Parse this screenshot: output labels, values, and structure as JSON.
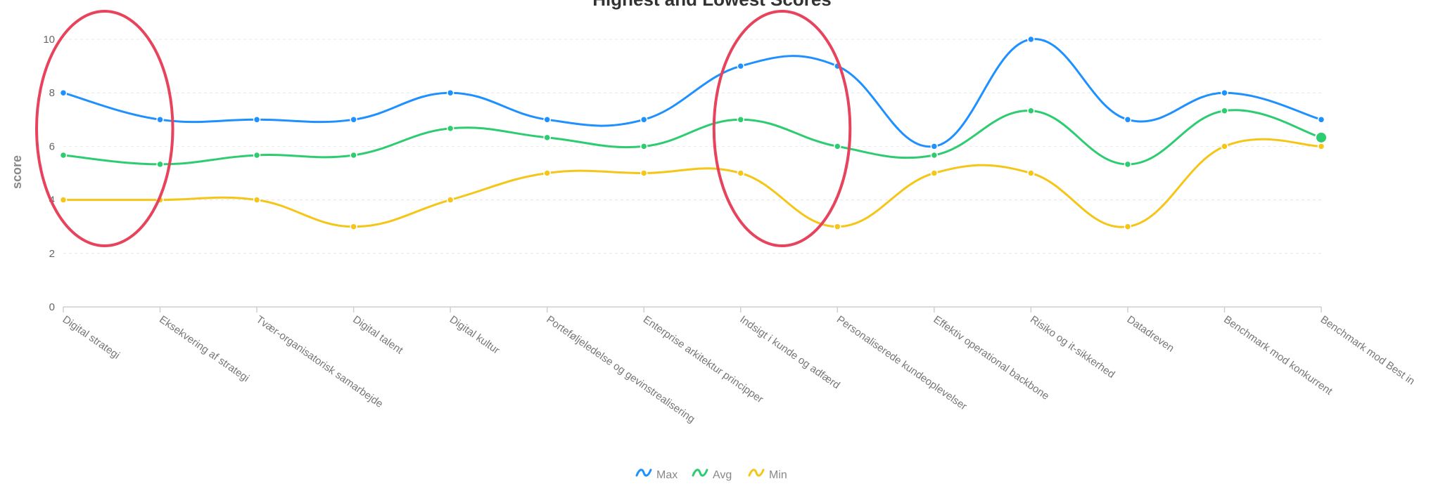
{
  "chart_data": {
    "type": "line",
    "title": "Highest and Lowest Scores",
    "xlabel": "",
    "ylabel": "score",
    "ylim": [
      0,
      10
    ],
    "yticks": [
      0,
      2,
      4,
      6,
      8,
      10
    ],
    "grid": true,
    "legend_position": "bottom",
    "categories": [
      "Digital strategi",
      "Eksekvering af strategi",
      "Tvær-organisatorisk samarbejde",
      "Digital talent",
      "Digital kultur",
      "Porteføljeledelse og gevinstrealisering",
      "Enterprise arkitektur principper",
      "Indsigt i kunde og adfærd",
      "Personaliserede kundeoplevelser",
      "Effektiv operational backbone",
      "Risiko og it-sikkerhed",
      "Datadreven",
      "Benchmark mod konkurrent",
      "Benchmark mod Best in"
    ],
    "series": [
      {
        "name": "Max",
        "color": "#1e90ff",
        "values": [
          8,
          7,
          7,
          7,
          8,
          7,
          7,
          9,
          9,
          6,
          10,
          7,
          8,
          7
        ]
      },
      {
        "name": "Avg",
        "color": "#2ecc71",
        "values": [
          5.67,
          5.33,
          5.67,
          5.67,
          6.67,
          6.33,
          6,
          7,
          6,
          5.67,
          7.33,
          5.33,
          7.33,
          6.33
        ]
      },
      {
        "name": "Min",
        "color": "#f5c518",
        "values": [
          4,
          4,
          4,
          3,
          4,
          5,
          5,
          5,
          3,
          5,
          5,
          3,
          6,
          6
        ]
      }
    ],
    "highlighted_point": {
      "series": "Avg",
      "category": "Benchmark mod Best in"
    },
    "annotations": [
      {
        "shape": "ellipse",
        "color": "#e8435c",
        "around_categories": [
          "Digital strategi",
          "Eksekvering af strategi"
        ]
      },
      {
        "shape": "ellipse",
        "color": "#e8435c",
        "around_categories": [
          "Indsigt i kunde og adfærd",
          "Personaliserede kundeoplevelser"
        ]
      }
    ]
  }
}
